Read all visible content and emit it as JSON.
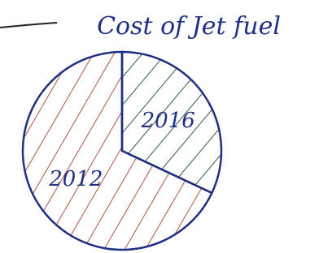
{
  "chart_data": {
    "type": "pie",
    "title": "Cost of Jet fuel",
    "categories": [
      "2016",
      "2012"
    ],
    "values": [
      32,
      68
    ],
    "colors": [
      "#2e5e3e",
      "#b0553f"
    ],
    "start_angle": 0,
    "direction": "clockwise"
  }
}
